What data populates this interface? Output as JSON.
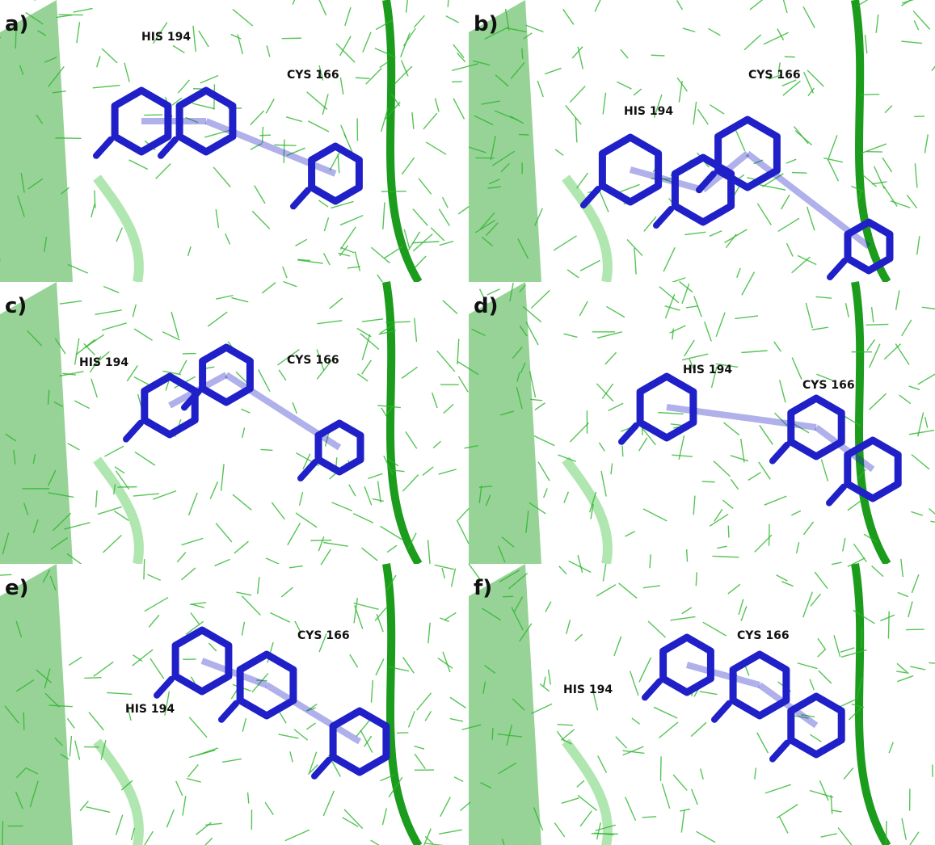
{
  "panels": [
    {
      "label": "a)",
      "residues": [
        "HIS 194",
        "CYS 166"
      ]
    },
    {
      "label": "b)",
      "residues": [
        "HIS 194",
        "CYS 166"
      ]
    },
    {
      "label": "c)",
      "residues": [
        "HIS 194",
        "CYS 166"
      ]
    },
    {
      "label": "d)",
      "residues": [
        "HIS 194",
        "CYS 166"
      ]
    },
    {
      "label": "e)",
      "residues": [
        "HIS 194",
        "CYS 166"
      ]
    },
    {
      "label": "f)",
      "residues": [
        "HIS 194",
        "CYS 166"
      ]
    }
  ]
}
